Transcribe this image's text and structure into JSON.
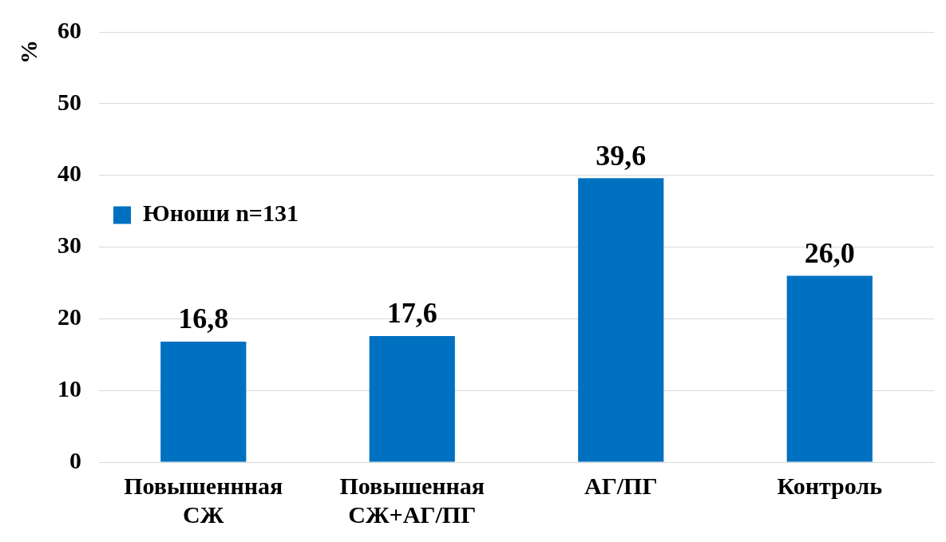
{
  "chart_data": {
    "type": "bar",
    "ylabel": "%",
    "categories": [
      "Повышеннная СЖ",
      "Повышенная СЖ+АГ/ПГ",
      "АГ/ПГ",
      "Контроль"
    ],
    "series": [
      {
        "name": "Юноши n=131",
        "color": "#0070c0",
        "values": [
          16.8,
          17.6,
          39.6,
          26.0
        ],
        "value_labels": [
          "16,8",
          "17,6",
          "39,6",
          "26,0"
        ]
      }
    ],
    "ylim": [
      0,
      60
    ],
    "yticks": [
      0,
      10,
      20,
      30,
      40,
      50,
      60
    ],
    "grid": "y",
    "legend": "top"
  }
}
